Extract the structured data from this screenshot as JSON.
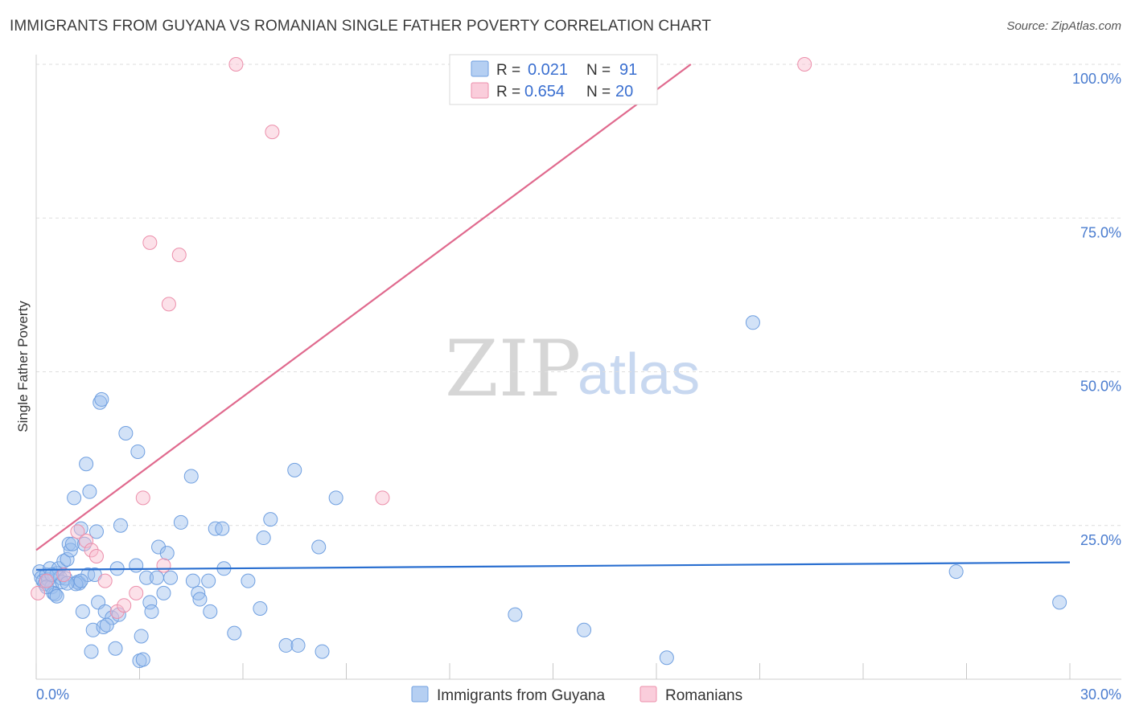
{
  "title": "IMMIGRANTS FROM GUYANA VS ROMANIAN SINGLE FATHER POVERTY CORRELATION CHART",
  "source": "Source: ZipAtlas.com",
  "watermark": {
    "zip": "ZIP",
    "atlas": "atlas"
  },
  "chart_data": {
    "type": "scatter",
    "title": "IMMIGRANTS FROM GUYANA VS ROMANIAN SINGLE FATHER POVERTY CORRELATION CHART",
    "xlabel": "",
    "ylabel": "Single Father Poverty",
    "xlim": [
      0,
      30
    ],
    "ylim": [
      0,
      100
    ],
    "x_tick_labels": [
      "0.0%",
      "30.0%"
    ],
    "y_tick_labels": [
      "100.0%",
      "75.0%",
      "50.0%",
      "25.0%"
    ],
    "y_tick_values": [
      100,
      75,
      50,
      25
    ],
    "legend": {
      "series1": {
        "r_label": "R = ",
        "r_value": "0.021",
        "n_label": "N = ",
        "n_value": "91"
      },
      "series2": {
        "r_label": "R = ",
        "r_value": "0.654",
        "n_label": "N = ",
        "n_value": "20"
      }
    },
    "series": [
      {
        "name": "Immigrants from Guyana",
        "color": "#9cbfee",
        "stroke": "#6f9fe0",
        "trend_color": "#2a6fd0",
        "trend": [
          [
            0,
            17.8
          ],
          [
            30,
            19.0
          ]
        ],
        "points": [
          [
            0.1,
            17.5
          ],
          [
            0.15,
            16.5
          ],
          [
            0.2,
            16.0
          ],
          [
            0.25,
            15.5
          ],
          [
            0.3,
            17.0
          ],
          [
            0.35,
            16.2
          ],
          [
            0.4,
            18.0
          ],
          [
            0.45,
            15.0
          ],
          [
            0.5,
            14.0
          ],
          [
            0.55,
            13.8
          ],
          [
            0.6,
            17.2
          ],
          [
            0.65,
            18.0
          ],
          [
            0.7,
            16.5
          ],
          [
            0.75,
            15.8
          ],
          [
            0.8,
            19.2
          ],
          [
            0.85,
            16.4
          ],
          [
            0.9,
            19.5
          ],
          [
            0.95,
            22.0
          ],
          [
            1.0,
            21.0
          ],
          [
            1.05,
            22.0
          ],
          [
            1.1,
            29.5
          ],
          [
            1.2,
            15.8
          ],
          [
            1.25,
            15.6
          ],
          [
            1.3,
            24.5
          ],
          [
            1.35,
            11.0
          ],
          [
            1.4,
            22.0
          ],
          [
            1.45,
            35.0
          ],
          [
            1.5,
            17.0
          ],
          [
            1.55,
            30.5
          ],
          [
            1.6,
            4.5
          ],
          [
            1.65,
            8.0
          ],
          [
            1.7,
            17.0
          ],
          [
            1.75,
            24.0
          ],
          [
            1.8,
            12.5
          ],
          [
            1.85,
            45.0
          ],
          [
            1.9,
            45.5
          ],
          [
            1.95,
            8.5
          ],
          [
            2.0,
            11.0
          ],
          [
            2.2,
            10.0
          ],
          [
            2.3,
            5.0
          ],
          [
            2.35,
            18.0
          ],
          [
            2.4,
            10.5
          ],
          [
            2.45,
            25.0
          ],
          [
            2.6,
            40.0
          ],
          [
            2.9,
            18.5
          ],
          [
            2.95,
            37.0
          ],
          [
            3.0,
            3.0
          ],
          [
            3.05,
            7.0
          ],
          [
            3.1,
            3.2
          ],
          [
            3.2,
            16.5
          ],
          [
            3.3,
            12.5
          ],
          [
            3.35,
            11.0
          ],
          [
            3.5,
            16.5
          ],
          [
            3.55,
            21.5
          ],
          [
            3.7,
            14.0
          ],
          [
            3.8,
            20.5
          ],
          [
            3.9,
            16.5
          ],
          [
            4.2,
            25.5
          ],
          [
            4.5,
            33.0
          ],
          [
            4.55,
            16.0
          ],
          [
            4.7,
            14.0
          ],
          [
            4.75,
            13.0
          ],
          [
            5.0,
            16.0
          ],
          [
            5.05,
            11.0
          ],
          [
            5.2,
            24.5
          ],
          [
            5.4,
            24.5
          ],
          [
            5.45,
            18.0
          ],
          [
            5.75,
            7.5
          ],
          [
            6.15,
            16.0
          ],
          [
            6.5,
            11.5
          ],
          [
            6.6,
            23.0
          ],
          [
            6.8,
            26.0
          ],
          [
            7.25,
            5.5
          ],
          [
            7.5,
            34.0
          ],
          [
            7.6,
            5.5
          ],
          [
            8.2,
            21.5
          ],
          [
            8.3,
            4.5
          ],
          [
            8.7,
            29.5
          ],
          [
            13.9,
            10.5
          ],
          [
            15.9,
            8.0
          ],
          [
            18.3,
            3.5
          ],
          [
            20.8,
            58.0
          ],
          [
            26.7,
            17.5
          ],
          [
            29.7,
            12.5
          ],
          [
            0.3,
            15.0
          ],
          [
            0.6,
            13.5
          ],
          [
            1.15,
            15.5
          ],
          [
            0.45,
            17.0
          ],
          [
            1.3,
            16.0
          ],
          [
            2.05,
            8.8
          ],
          [
            0.9,
            15.6
          ]
        ]
      },
      {
        "name": "Romanians",
        "color": "#f8bccf",
        "stroke": "#ec8fab",
        "trend_color": "#e06a8e",
        "trend": [
          [
            0,
            21.0
          ],
          [
            19.0,
            100.0
          ]
        ],
        "points": [
          [
            0.05,
            14.0
          ],
          [
            0.3,
            16.0
          ],
          [
            0.8,
            17.0
          ],
          [
            1.2,
            24.0
          ],
          [
            1.45,
            22.5
          ],
          [
            1.6,
            21.0
          ],
          [
            1.75,
            20.0
          ],
          [
            2.0,
            16.0
          ],
          [
            2.35,
            11.0
          ],
          [
            2.55,
            12.0
          ],
          [
            2.9,
            14.0
          ],
          [
            3.1,
            29.5
          ],
          [
            3.3,
            71.0
          ],
          [
            3.7,
            18.5
          ],
          [
            3.85,
            61.0
          ],
          [
            4.15,
            69.0
          ],
          [
            5.8,
            100.0
          ],
          [
            6.85,
            89.0
          ],
          [
            10.05,
            29.5
          ],
          [
            22.3,
            100.0
          ]
        ]
      }
    ]
  }
}
